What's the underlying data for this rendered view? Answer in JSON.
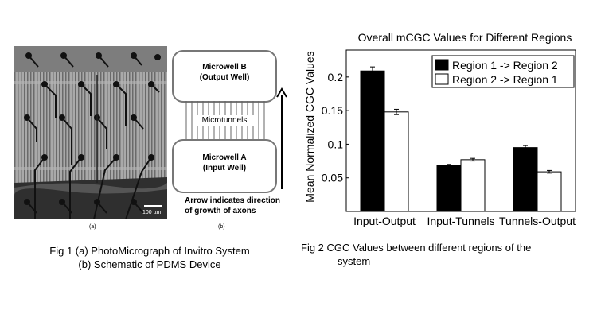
{
  "figure1": {
    "micrograph_scale_bar": "100 µm",
    "panel_a_label": "(a)",
    "panel_b_label": "(b)",
    "schematic": {
      "well_b_line1": "Microwell B",
      "well_b_line2": "(Output Well)",
      "tunnels_label": "Microtunnels",
      "well_a_line1": "Microwell A",
      "well_a_line2": "(Input Well)",
      "arrow_note_line1": "Arrow indicates direction",
      "arrow_note_line2": "of growth of axons"
    },
    "caption_line1": "Fig 1 (a) PhotoMicrograph of Invitro System",
    "caption_line2": "(b) Schematic of PDMS Device"
  },
  "figure2": {
    "caption_line1": "Fig 2 CGC Values between different regions of the",
    "caption_line2": "system"
  },
  "chart_data": {
    "type": "bar",
    "title": "Overall mCGC Values for Different Regions",
    "xlabel": "",
    "ylabel": "Mean Normalized CGC Values",
    "categories": [
      "Input-Output",
      "Input-Tunnels",
      "Tunnels-Output"
    ],
    "series": [
      {
        "name": "Region 1 -> Region 2",
        "color": "#000000",
        "values": [
          0.209,
          0.068,
          0.095
        ],
        "errors": [
          0.006,
          0.002,
          0.003
        ]
      },
      {
        "name": "Region 2 -> Region 1",
        "color": "#ffffff",
        "values": [
          0.148,
          0.077,
          0.059
        ],
        "errors": [
          0.004,
          0.002,
          0.002
        ]
      }
    ],
    "ylim": [
      0,
      0.24
    ],
    "yticks": [
      "0.05",
      "0.1",
      "0.15",
      "0.2"
    ],
    "ytick_values": [
      0.05,
      0.1,
      0.15,
      0.2
    ],
    "legend_position": "top-right",
    "grid": false
  }
}
